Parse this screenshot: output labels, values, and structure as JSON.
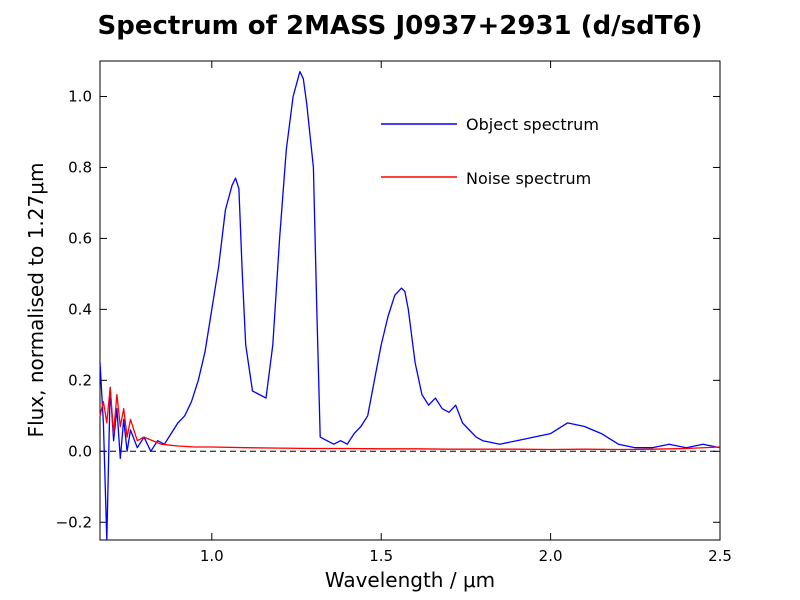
{
  "chart_data": {
    "type": "line",
    "title": "Spectrum of 2MASS J0937+2931 (d/sdT6)",
    "xlabel": "Wavelength / μm",
    "ylabel": "Flux, normalised to 1.27μm",
    "xlim": [
      0.67,
      2.5
    ],
    "ylim": [
      -0.25,
      1.1
    ],
    "xticks": [
      1.0,
      1.5,
      2.0,
      2.5
    ],
    "xtick_labels": [
      "1.0",
      "1.5",
      "2.0",
      "2.5"
    ],
    "yticks": [
      -0.2,
      0.0,
      0.2,
      0.4,
      0.6,
      0.8,
      1.0
    ],
    "ytick_labels": [
      "−0.2",
      "0.0",
      "0.2",
      "0.4",
      "0.6",
      "0.8",
      "1.0"
    ],
    "grid": false,
    "legend_position": "top-right",
    "zero_line": {
      "y": 0.0,
      "style": "dashed",
      "color": "#000000"
    },
    "series": [
      {
        "name": "Object spectrum",
        "color": "#0000ff",
        "x": [
          0.67,
          0.68,
          0.69,
          0.7,
          0.71,
          0.72,
          0.73,
          0.74,
          0.75,
          0.76,
          0.78,
          0.8,
          0.82,
          0.84,
          0.86,
          0.88,
          0.9,
          0.92,
          0.94,
          0.96,
          0.98,
          1.0,
          1.02,
          1.04,
          1.06,
          1.07,
          1.08,
          1.09,
          1.1,
          1.12,
          1.14,
          1.16,
          1.18,
          1.2,
          1.22,
          1.24,
          1.26,
          1.27,
          1.28,
          1.3,
          1.31,
          1.32,
          1.34,
          1.36,
          1.38,
          1.4,
          1.42,
          1.44,
          1.46,
          1.48,
          1.5,
          1.52,
          1.54,
          1.56,
          1.57,
          1.58,
          1.6,
          1.62,
          1.64,
          1.66,
          1.68,
          1.7,
          1.72,
          1.74,
          1.76,
          1.78,
          1.8,
          1.85,
          1.9,
          1.95,
          2.0,
          2.05,
          2.1,
          2.15,
          2.2,
          2.25,
          2.3,
          2.35,
          2.4,
          2.45,
          2.5
        ],
        "y": [
          0.25,
          0.08,
          -0.25,
          0.18,
          0.03,
          0.12,
          -0.02,
          0.09,
          0.0,
          0.06,
          0.01,
          0.04,
          0.0,
          0.03,
          0.02,
          0.05,
          0.08,
          0.1,
          0.14,
          0.2,
          0.28,
          0.4,
          0.52,
          0.68,
          0.75,
          0.77,
          0.74,
          0.5,
          0.3,
          0.17,
          0.16,
          0.15,
          0.3,
          0.6,
          0.85,
          1.0,
          1.07,
          1.05,
          0.98,
          0.8,
          0.4,
          0.04,
          0.03,
          0.02,
          0.03,
          0.02,
          0.05,
          0.07,
          0.1,
          0.2,
          0.3,
          0.38,
          0.44,
          0.46,
          0.45,
          0.4,
          0.25,
          0.16,
          0.13,
          0.15,
          0.12,
          0.11,
          0.13,
          0.08,
          0.06,
          0.04,
          0.03,
          0.02,
          0.03,
          0.04,
          0.05,
          0.08,
          0.07,
          0.05,
          0.02,
          0.01,
          0.01,
          0.02,
          0.01,
          0.02,
          0.01
        ]
      },
      {
        "name": "Noise spectrum",
        "color": "#ff0000",
        "x": [
          0.67,
          0.68,
          0.69,
          0.7,
          0.71,
          0.72,
          0.73,
          0.74,
          0.75,
          0.76,
          0.78,
          0.8,
          0.85,
          0.9,
          0.95,
          1.0,
          1.1,
          1.2,
          1.3,
          1.4,
          1.5,
          1.6,
          1.7,
          1.8,
          1.9,
          2.0,
          2.1,
          2.2,
          2.3,
          2.4,
          2.5
        ],
        "y": [
          0.1,
          0.14,
          0.08,
          0.18,
          0.05,
          0.16,
          0.07,
          0.12,
          0.04,
          0.09,
          0.03,
          0.04,
          0.02,
          0.015,
          0.012,
          0.012,
          0.01,
          0.009,
          0.008,
          0.008,
          0.007,
          0.007,
          0.006,
          0.006,
          0.006,
          0.005,
          0.006,
          0.005,
          0.006,
          0.008,
          0.012
        ]
      }
    ]
  }
}
